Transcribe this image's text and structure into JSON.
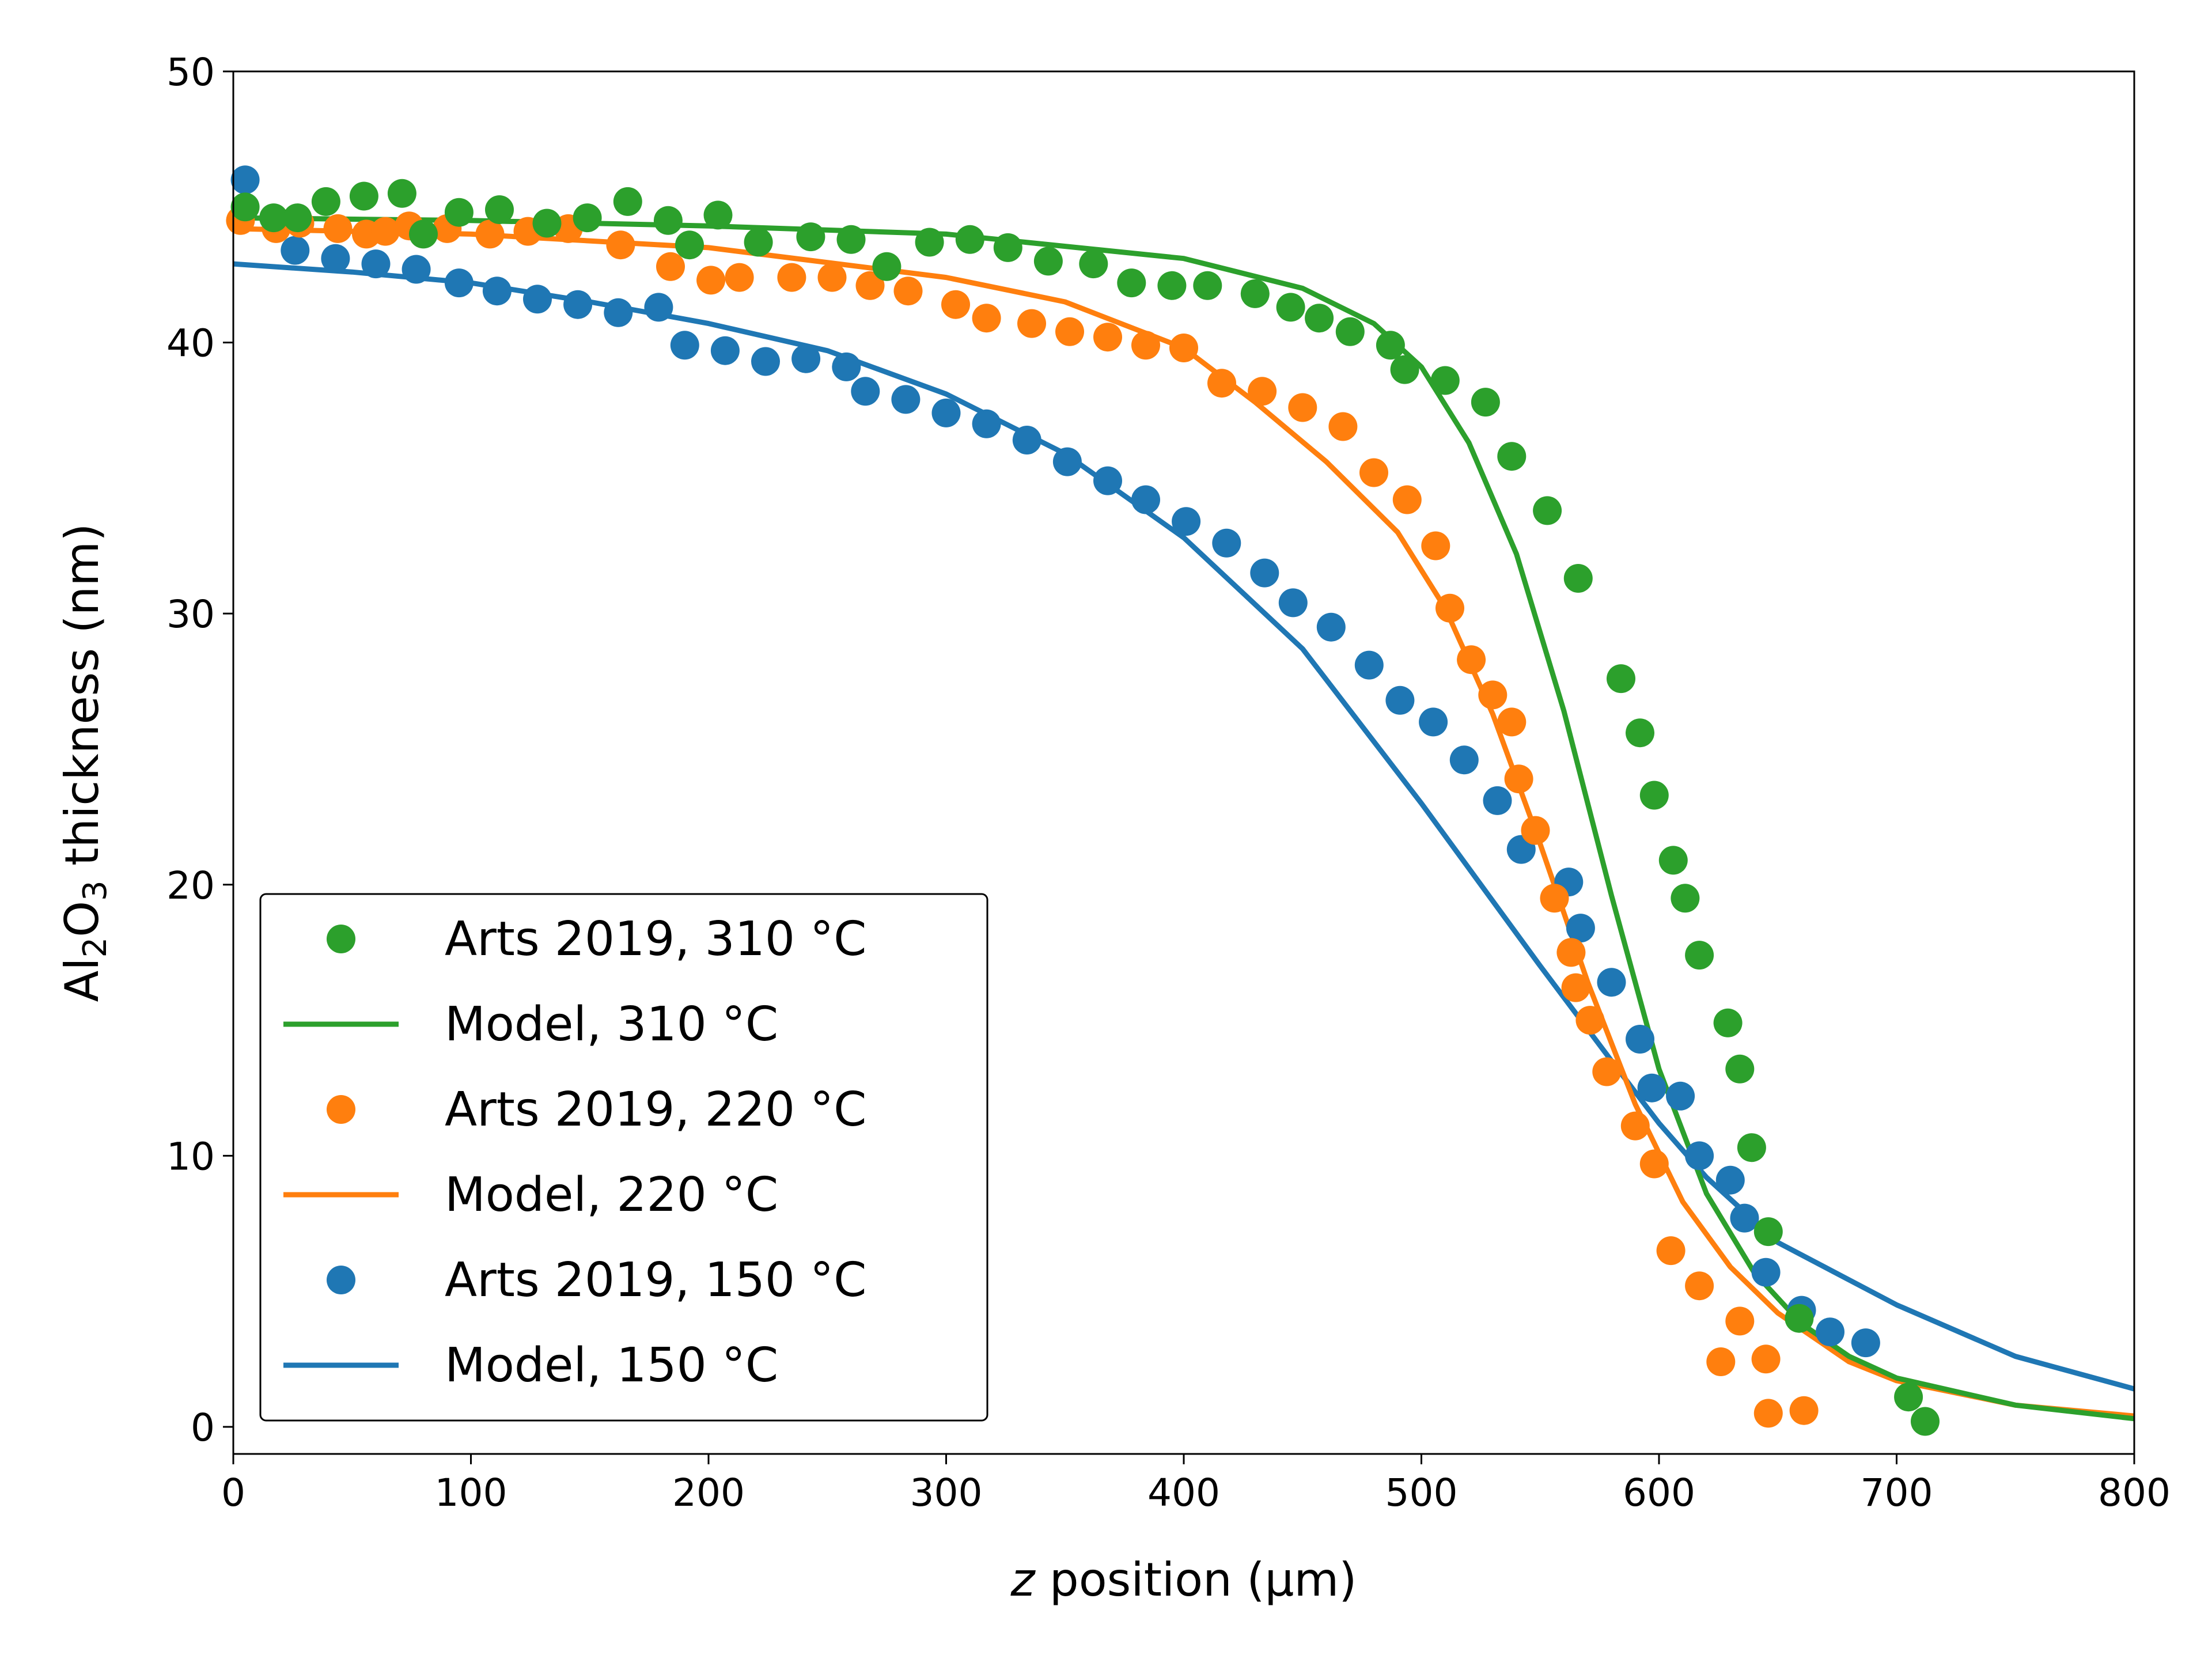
{
  "chart_data": {
    "type": "scatter",
    "xlabel_italic": "z",
    "xlabel_rest": " position (µm)",
    "ylabel_parts": {
      "a": "Al",
      "s1": "2",
      "b": "O",
      "s2": "3",
      "c": " thickness (nm)"
    },
    "xlim": [
      0,
      800
    ],
    "ylim": [
      -1,
      50
    ],
    "xticks": [
      0,
      100,
      200,
      300,
      400,
      500,
      600,
      700,
      800
    ],
    "yticks": [
      0,
      10,
      20,
      30,
      40,
      50
    ],
    "grid": false,
    "legend_position": "lower left",
    "colors": {
      "green": "#2ca02c",
      "orange": "#ff7f0e",
      "blue": "#1f77b4"
    },
    "legend": [
      {
        "label": "Arts 2019, 310 °C",
        "kind": "marker",
        "color": "#2ca02c"
      },
      {
        "label": "Model, 310 °C",
        "kind": "line",
        "color": "#2ca02c"
      },
      {
        "label": "Arts 2019, 220 °C",
        "kind": "marker",
        "color": "#ff7f0e"
      },
      {
        "label": "Model, 220 °C",
        "kind": "line",
        "color": "#ff7f0e"
      },
      {
        "label": "Arts 2019, 150 °C",
        "kind": "marker",
        "color": "#1f77b4"
      },
      {
        "label": "Model, 150 °C",
        "kind": "line",
        "color": "#1f77b4"
      }
    ],
    "series": [
      {
        "name": "Model, 150 °C",
        "kind": "line",
        "color": "#1f77b4",
        "x": [
          0,
          50,
          100,
          150,
          200,
          250,
          300,
          350,
          400,
          450,
          500,
          550,
          580,
          600,
          620,
          650,
          700,
          750,
          800
        ],
        "y": [
          42.9,
          42.6,
          42.2,
          41.5,
          40.7,
          39.7,
          38.1,
          35.9,
          32.8,
          28.7,
          23.0,
          17.0,
          13.5,
          11.2,
          9.2,
          6.8,
          4.5,
          2.6,
          1.4
        ]
      },
      {
        "name": "Model, 220 °C",
        "kind": "line",
        "color": "#ff7f0e",
        "x": [
          0,
          100,
          200,
          300,
          350,
          400,
          430,
          460,
          490,
          510,
          530,
          550,
          570,
          590,
          610,
          630,
          650,
          680,
          700,
          750,
          800
        ],
        "y": [
          44.2,
          44.0,
          43.5,
          42.4,
          41.5,
          39.8,
          37.8,
          35.6,
          33.0,
          30.2,
          26.3,
          21.5,
          16.4,
          11.9,
          8.3,
          5.9,
          4.2,
          2.4,
          1.7,
          0.8,
          0.4
        ]
      },
      {
        "name": "Model, 310 °C",
        "kind": "line",
        "color": "#2ca02c",
        "x": [
          0,
          100,
          200,
          300,
          400,
          450,
          480,
          500,
          520,
          540,
          560,
          580,
          600,
          620,
          640,
          660,
          680,
          700,
          750,
          800
        ],
        "y": [
          44.6,
          44.5,
          44.3,
          44.0,
          43.1,
          42.0,
          40.7,
          39.1,
          36.3,
          32.2,
          26.4,
          19.6,
          13.2,
          8.6,
          5.7,
          3.8,
          2.6,
          1.8,
          0.8,
          0.3
        ]
      },
      {
        "name": "Arts 2019, 150 °C",
        "kind": "marker",
        "color": "#1f77b4",
        "x": [
          5,
          26,
          43,
          60,
          77,
          95,
          111,
          128,
          145,
          162,
          179,
          190,
          207,
          224,
          241,
          258,
          266,
          283,
          300,
          317,
          334,
          351,
          368,
          384,
          401,
          418,
          434,
          446,
          462,
          478,
          491,
          505,
          518,
          532,
          542,
          562,
          567,
          580,
          592,
          597,
          609,
          617,
          630,
          636,
          645,
          660,
          672,
          687
        ],
        "y": [
          46.0,
          43.4,
          43.1,
          42.9,
          42.7,
          42.2,
          41.9,
          41.6,
          41.4,
          41.1,
          41.3,
          39.9,
          39.7,
          39.3,
          39.4,
          39.1,
          38.2,
          37.9,
          37.4,
          37.0,
          36.4,
          35.6,
          34.9,
          34.2,
          33.4,
          32.6,
          31.5,
          30.4,
          29.5,
          28.1,
          26.8,
          26.0,
          24.6,
          23.1,
          21.3,
          20.1,
          18.4,
          16.4,
          14.3,
          12.5,
          12.2,
          10.0,
          9.1,
          7.7,
          5.7,
          4.3,
          3.5,
          3.1
        ]
      },
      {
        "name": "Arts 2019, 220 °C",
        "kind": "marker",
        "color": "#ff7f0e",
        "x": [
          3,
          18,
          28,
          44,
          56,
          64,
          74,
          90,
          108,
          124,
          141,
          163,
          184,
          201,
          213,
          235,
          252,
          268,
          284,
          304,
          317,
          336,
          352,
          368,
          384,
          400,
          416,
          433,
          450,
          467,
          480,
          494,
          506,
          512,
          521,
          530,
          538,
          541,
          548,
          556,
          563,
          565,
          571,
          578,
          590,
          598,
          605,
          617,
          626,
          634,
          645,
          646,
          661
        ],
        "y": [
          44.5,
          44.2,
          44.4,
          44.2,
          44.0,
          44.1,
          44.3,
          44.2,
          44.0,
          44.1,
          44.2,
          43.6,
          42.8,
          42.3,
          42.4,
          42.4,
          42.4,
          42.1,
          41.9,
          41.4,
          40.9,
          40.7,
          40.4,
          40.2,
          39.9,
          39.8,
          38.5,
          38.2,
          37.6,
          36.9,
          35.2,
          34.2,
          32.5,
          30.2,
          28.3,
          27.0,
          26.0,
          23.9,
          22.0,
          19.5,
          17.5,
          16.2,
          15.0,
          13.1,
          11.1,
          9.7,
          6.5,
          5.2,
          2.4,
          3.9,
          2.5,
          0.5,
          0.6
        ]
      },
      {
        "name": "Arts 2019, 310 °C",
        "kind": "marker",
        "color": "#2ca02c",
        "x": [
          5,
          17,
          27,
          39,
          55,
          71,
          80,
          95,
          112,
          132,
          149,
          166,
          183,
          192,
          204,
          221,
          243,
          260,
          275,
          293,
          310,
          326,
          343,
          362,
          378,
          395,
          410,
          430,
          445,
          457,
          470,
          487,
          493,
          510,
          527,
          538,
          553,
          566,
          584,
          592,
          598,
          606,
          611,
          617,
          629,
          634,
          639,
          646,
          659,
          705,
          712
        ],
        "y": [
          45.0,
          44.6,
          44.6,
          45.2,
          45.4,
          45.5,
          44.0,
          44.8,
          44.9,
          44.4,
          44.6,
          45.2,
          44.5,
          43.6,
          44.7,
          43.7,
          43.9,
          43.8,
          42.8,
          43.7,
          43.8,
          43.5,
          43.0,
          42.9,
          42.2,
          42.1,
          42.1,
          41.8,
          41.3,
          40.9,
          40.4,
          39.9,
          39.0,
          38.6,
          37.8,
          35.8,
          33.8,
          31.3,
          27.6,
          25.6,
          23.3,
          20.9,
          19.5,
          17.4,
          14.9,
          13.2,
          10.3,
          7.2,
          4.0,
          1.1,
          0.2
        ]
      }
    ]
  }
}
